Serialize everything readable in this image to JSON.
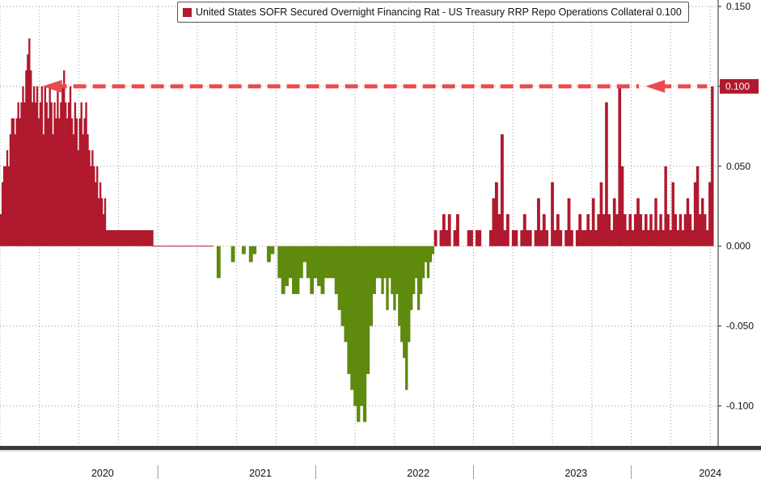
{
  "legend": {
    "label": "United States SOFR Secured Overnight Financing Rat - US Treasury RRP Repo Operations Collateral",
    "last_value": "0.100"
  },
  "colors": {
    "positive": "#b0192e",
    "negative": "#5e8a0e",
    "arrow": "#ea4a4c",
    "tag": "#b0192e"
  },
  "chart_data": {
    "type": "bar",
    "ylim": [
      -0.125,
      0.15
    ],
    "y_ticks": [
      "0.150",
      "0.100",
      "0.050",
      "0.000",
      "-0.050",
      "-0.100"
    ],
    "y_tick_values": [
      0.15,
      0.1,
      0.05,
      0.0,
      -0.05,
      -0.1
    ],
    "x_labels": [
      "2020",
      "2021",
      "2022",
      "2023",
      "2024"
    ],
    "x_label_positions": [
      2020.4,
      2021.4,
      2022.4,
      2023.4,
      2024.25
    ],
    "xlim": [
      2019.75,
      2024.3
    ],
    "grid": true,
    "last_value_label": "0.100",
    "annotation": "dashed arrow at 0.100 pointing left to the 2020 peak",
    "series": [
      {
        "segments": [
          {
            "x0": 2019.75,
            "x1": 2019.85,
            "values": [
              0.02,
              0.04,
              0.05,
              0.05,
              0.06,
              0.05,
              0.07,
              0.08,
              0.08,
              0.07
            ]
          },
          {
            "x0": 2019.85,
            "x1": 2020.3,
            "values": [
              0.08,
              0.09,
              0.08,
              0.09,
              0.1,
              0.09,
              0.11,
              0.12,
              0.13,
              0.11,
              0.09,
              0.1,
              0.09,
              0.1,
              0.08,
              0.09,
              0.1,
              0.07,
              0.1,
              0.09,
              0.08,
              0.1,
              0.09,
              0.07,
              0.09,
              0.08,
              0.1,
              0.08,
              0.09,
              0.1,
              0.11,
              0.09,
              0.08,
              0.09,
              0.1,
              0.08,
              0.07,
              0.09,
              0.08,
              0.06,
              0.08,
              0.09,
              0.07,
              0.08,
              0.09
            ]
          },
          {
            "x0": 2020.3,
            "x1": 2020.43,
            "values": [
              0.07,
              0.06,
              0.05,
              0.06,
              0.05,
              0.04,
              0.05,
              0.03,
              0.04,
              0.03,
              0.02,
              0.03,
              0.01
            ]
          },
          {
            "x0": 2020.43,
            "x1": 2020.72,
            "values": [
              0.01
            ]
          },
          {
            "x0": 2020.72,
            "x1": 2021.1,
            "values": [
              0.0
            ]
          },
          {
            "x0": 2021.1,
            "x1": 2021.85,
            "values": [
              0.0,
              -0.02,
              0.0,
              0.0,
              0.0,
              -0.01,
              0.0,
              0.0,
              -0.005,
              0.0,
              -0.01,
              -0.005,
              0.0,
              0.0,
              0.0,
              -0.01,
              -0.005,
              0.0,
              -0.02,
              -0.03,
              -0.025,
              -0.02,
              -0.03,
              -0.03,
              -0.02,
              -0.01,
              -0.02,
              -0.03,
              -0.02,
              -0.025,
              -0.03,
              -0.02,
              -0.02
            ]
          },
          {
            "x0": 2021.85,
            "x1": 2022.15,
            "values": [
              -0.02,
              -0.03,
              -0.04,
              -0.05,
              -0.06,
              -0.08,
              -0.09,
              -0.1,
              -0.11,
              -0.1,
              -0.11,
              -0.08,
              -0.05,
              -0.03,
              -0.02
            ]
          },
          {
            "x0": 2022.15,
            "x1": 2022.5,
            "values": [
              -0.02,
              -0.03,
              -0.02,
              -0.04,
              -0.02,
              -0.03,
              -0.04,
              -0.03,
              -0.05,
              -0.06,
              -0.07,
              -0.09,
              -0.06,
              -0.04,
              -0.03,
              -0.02,
              -0.04,
              -0.03,
              -0.02,
              -0.01,
              -0.02,
              -0.01,
              -0.005
            ]
          },
          {
            "x0": 2022.5,
            "x1": 2022.85,
            "values": [
              0.01,
              0.0,
              0.01,
              0.02,
              0.01,
              0.02,
              0.0,
              0.01,
              0.02,
              0.0,
              0.0,
              0.0,
              0.01,
              0.01,
              0.0,
              0.01,
              0.01,
              0.0,
              0.0,
              0.0
            ]
          },
          {
            "x0": 2022.85,
            "x1": 2023.1,
            "values": [
              0.01,
              0.03,
              0.04,
              0.02,
              0.07,
              0.01,
              0.02,
              0.0,
              0.01,
              0.01,
              0.0,
              0.01,
              0.02,
              0.01
            ]
          },
          {
            "x0": 2023.1,
            "x1": 2023.45,
            "values": [
              0.01,
              0.0,
              0.01,
              0.03,
              0.01,
              0.02,
              0.01,
              0.0,
              0.04,
              0.01,
              0.02,
              0.01,
              0.0,
              0.01,
              0.03,
              0.01,
              0.0,
              0.01,
              0.02,
              0.01
            ]
          },
          {
            "x0": 2023.45,
            "x1": 2023.85,
            "values": [
              0.01,
              0.02,
              0.01,
              0.03,
              0.01,
              0.02,
              0.04,
              0.02,
              0.09,
              0.02,
              0.01,
              0.03,
              0.02,
              0.1,
              0.05,
              0.02,
              0.01,
              0.02,
              0.01,
              0.02,
              0.03,
              0.02,
              0.01,
              0.02
            ]
          },
          {
            "x0": 2023.85,
            "x1": 2024.27,
            "values": [
              0.01,
              0.02,
              0.01,
              0.03,
              0.01,
              0.02,
              0.01,
              0.05,
              0.02,
              0.01,
              0.04,
              0.02,
              0.01,
              0.02,
              0.01,
              0.02,
              0.03,
              0.02,
              0.01,
              0.04,
              0.05,
              0.02,
              0.03,
              0.02,
              0.01,
              0.04,
              0.1
            ]
          }
        ]
      }
    ]
  }
}
